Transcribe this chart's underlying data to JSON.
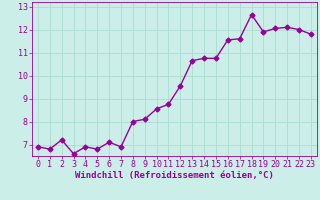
{
  "x": [
    0,
    1,
    2,
    3,
    4,
    5,
    6,
    7,
    8,
    9,
    10,
    11,
    12,
    13,
    14,
    15,
    16,
    17,
    18,
    19,
    20,
    21,
    22,
    23
  ],
  "y": [
    6.9,
    6.8,
    7.2,
    6.6,
    6.9,
    6.8,
    7.1,
    6.9,
    8.0,
    8.1,
    8.55,
    8.75,
    9.55,
    10.65,
    10.75,
    10.75,
    11.55,
    11.6,
    12.65,
    11.9,
    12.05,
    12.1,
    12.0,
    11.8
  ],
  "line_color": "#990099",
  "marker": "D",
  "marker_size": 2.5,
  "bg_color": "#cceee8",
  "grid_color": "#aaddcc",
  "xlabel": "Windchill (Refroidissement éolien,°C)",
  "xlim": [
    -0.5,
    23.5
  ],
  "ylim": [
    6.5,
    13.2
  ],
  "yticks": [
    7,
    8,
    9,
    10,
    11,
    12,
    13
  ],
  "xticks": [
    0,
    1,
    2,
    3,
    4,
    5,
    6,
    7,
    8,
    9,
    10,
    11,
    12,
    13,
    14,
    15,
    16,
    17,
    18,
    19,
    20,
    21,
    22,
    23
  ],
  "linewidth": 1.0,
  "xlabel_fontsize": 6.5,
  "tick_fontsize": 6.0,
  "xlabel_color": "#990099",
  "tick_color": "#990099"
}
